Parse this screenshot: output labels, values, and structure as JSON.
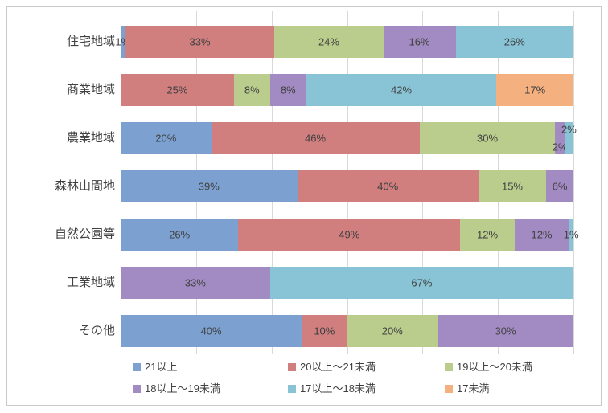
{
  "chart_data": {
    "type": "bar",
    "stacked": true,
    "orientation": "horizontal",
    "percent_axis": true,
    "unit": "%",
    "xlim": [
      0,
      100
    ],
    "gridline_divisions": 6,
    "grid": true,
    "legend_position": "bottom",
    "title": "",
    "xlabel": "",
    "ylabel": "",
    "categories": [
      "住宅地域",
      "商業地域",
      "農業地域",
      "森林山間地",
      "自然公園等",
      "工業地域",
      "その他"
    ],
    "series": [
      {
        "name": "21以上",
        "color": "#7ca1d0",
        "values": [
          1,
          0,
          20,
          39,
          26,
          0,
          40
        ]
      },
      {
        "name": "20以上～21未満",
        "color": "#d07e7e",
        "values": [
          33,
          25,
          46,
          40,
          49,
          0,
          10
        ]
      },
      {
        "name": "19以上～20未満",
        "color": "#bacd8d",
        "values": [
          24,
          8,
          30,
          15,
          12,
          0,
          20
        ]
      },
      {
        "name": "18以上～19未満",
        "color": "#a28bc2",
        "values": [
          16,
          8,
          2,
          6,
          12,
          33,
          30
        ]
      },
      {
        "name": "17以上～18未満",
        "color": "#88c4d6",
        "values": [
          26,
          42,
          2,
          0,
          1,
          67,
          0
        ]
      },
      {
        "name": "17未満",
        "color": "#f5b07f",
        "values": [
          0,
          17,
          0,
          0,
          0,
          0,
          0
        ]
      }
    ],
    "data_label_format": "{value}%",
    "colors": {
      "plot_background": "#ffffff",
      "gridline": "#d9d9d9",
      "axis_line": "#bfbfbf",
      "chart_border": "#c9c9c9",
      "label_text": "#404040"
    }
  }
}
